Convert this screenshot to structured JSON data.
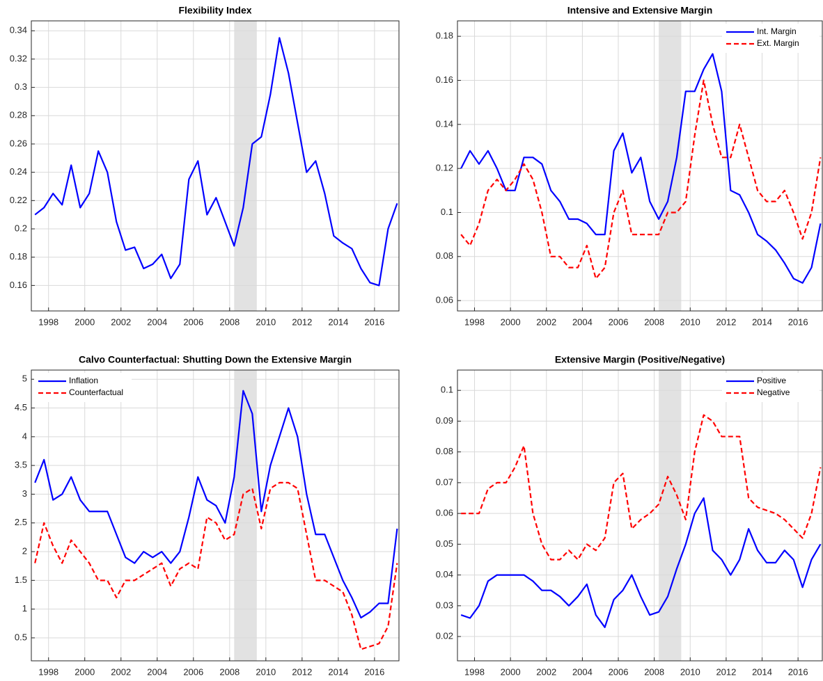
{
  "chart_data": [
    {
      "type": "line",
      "title": "Flexibility Index",
      "x": [
        1997.25,
        1997.75,
        1998.25,
        1998.75,
        1999.25,
        1999.75,
        2000.25,
        2000.75,
        2001.25,
        2001.75,
        2002.25,
        2002.75,
        2003.25,
        2003.75,
        2004.25,
        2004.75,
        2005.25,
        2005.75,
        2006.25,
        2006.75,
        2007.25,
        2007.75,
        2008.25,
        2008.75,
        2009.25,
        2009.75,
        2010.25,
        2010.75,
        2011.25,
        2011.75,
        2012.25,
        2012.75,
        2013.25,
        2013.75,
        2014.25,
        2014.75,
        2015.25,
        2015.75,
        2016.25,
        2016.75,
        2017.25
      ],
      "series": [
        {
          "color": "#0000ff",
          "linestyle": "solid",
          "values": [
            0.21,
            0.215,
            0.225,
            0.217,
            0.245,
            0.215,
            0.225,
            0.255,
            0.24,
            0.205,
            0.185,
            0.187,
            0.172,
            0.175,
            0.182,
            0.165,
            0.175,
            0.235,
            0.248,
            0.21,
            0.222,
            0.205,
            0.188,
            0.215,
            0.26,
            0.265,
            0.295,
            0.335,
            0.31,
            0.275,
            0.24,
            0.248,
            0.225,
            0.195,
            0.19,
            0.186,
            0.172,
            0.162,
            0.16,
            0.2,
            0.218
          ]
        }
      ],
      "xlim": [
        1997.05,
        2017.35
      ],
      "xticks": [
        1998,
        2000,
        2002,
        2004,
        2006,
        2008,
        2010,
        2012,
        2014,
        2016
      ],
      "ylim": [
        0.142,
        0.347
      ],
      "yticks": [
        0.16,
        0.18,
        0.2,
        0.22,
        0.24,
        0.26,
        0.28,
        0.3,
        0.32,
        0.34
      ],
      "shade": [
        2008.25,
        2009.5
      ],
      "grid": true
    },
    {
      "type": "line",
      "title": "Intensive and Extensive Margin",
      "x": [
        1997.25,
        1997.75,
        1998.25,
        1998.75,
        1999.25,
        1999.75,
        2000.25,
        2000.75,
        2001.25,
        2001.75,
        2002.25,
        2002.75,
        2003.25,
        2003.75,
        2004.25,
        2004.75,
        2005.25,
        2005.75,
        2006.25,
        2006.75,
        2007.25,
        2007.75,
        2008.25,
        2008.75,
        2009.25,
        2009.75,
        2010.25,
        2010.75,
        2011.25,
        2011.75,
        2012.25,
        2012.75,
        2013.25,
        2013.75,
        2014.25,
        2014.75,
        2015.25,
        2015.75,
        2016.25,
        2016.75,
        2017.25
      ],
      "series": [
        {
          "name": "Int. Margin",
          "color": "#0000ff",
          "linestyle": "solid",
          "values": [
            0.12,
            0.128,
            0.122,
            0.128,
            0.12,
            0.11,
            0.11,
            0.125,
            0.125,
            0.122,
            0.11,
            0.105,
            0.097,
            0.097,
            0.095,
            0.09,
            0.09,
            0.128,
            0.136,
            0.118,
            0.125,
            0.105,
            0.097,
            0.105,
            0.125,
            0.155,
            0.155,
            0.165,
            0.172,
            0.155,
            0.11,
            0.108,
            0.1,
            0.09,
            0.087,
            0.083,
            0.077,
            0.07,
            0.068,
            0.075,
            0.095
          ]
        },
        {
          "name": "Ext. Margin",
          "color": "#ff0000",
          "linestyle": "dashed",
          "values": [
            0.09,
            0.085,
            0.095,
            0.11,
            0.115,
            0.11,
            0.115,
            0.122,
            0.115,
            0.1,
            0.08,
            0.08,
            0.075,
            0.075,
            0.085,
            0.07,
            0.075,
            0.1,
            0.11,
            0.09,
            0.09,
            0.09,
            0.09,
            0.1,
            0.1,
            0.105,
            0.135,
            0.16,
            0.14,
            0.125,
            0.125,
            0.14,
            0.125,
            0.11,
            0.105,
            0.105,
            0.11,
            0.1,
            0.088,
            0.1,
            0.125
          ]
        }
      ],
      "xlim": [
        1997.05,
        2017.35
      ],
      "xticks": [
        1998,
        2000,
        2002,
        2004,
        2006,
        2008,
        2010,
        2012,
        2014,
        2016
      ],
      "ylim": [
        0.0553,
        0.187
      ],
      "yticks": [
        0.06,
        0.08,
        0.1,
        0.12,
        0.14,
        0.16,
        0.18
      ],
      "shade": [
        2008.25,
        2009.5
      ],
      "grid": true,
      "legend": "upper right"
    },
    {
      "type": "line",
      "title": "Calvo Counterfactual: Shutting Down the Extensive Margin",
      "x": [
        1997.25,
        1997.75,
        1998.25,
        1998.75,
        1999.25,
        1999.75,
        2000.25,
        2000.75,
        2001.25,
        2001.75,
        2002.25,
        2002.75,
        2003.25,
        2003.75,
        2004.25,
        2004.75,
        2005.25,
        2005.75,
        2006.25,
        2006.75,
        2007.25,
        2007.75,
        2008.25,
        2008.75,
        2009.25,
        2009.75,
        2010.25,
        2010.75,
        2011.25,
        2011.75,
        2012.25,
        2012.75,
        2013.25,
        2013.75,
        2014.25,
        2014.75,
        2015.25,
        2015.75,
        2016.25,
        2016.75,
        2017.25
      ],
      "series": [
        {
          "name": "Inflation",
          "color": "#0000ff",
          "linestyle": "solid",
          "values": [
            3.2,
            3.6,
            2.9,
            3.0,
            3.3,
            2.9,
            2.7,
            2.7,
            2.7,
            2.3,
            1.9,
            1.8,
            2.0,
            1.9,
            2.0,
            1.8,
            2.0,
            2.6,
            3.3,
            2.9,
            2.8,
            2.5,
            3.3,
            4.8,
            4.4,
            2.7,
            3.5,
            4.0,
            4.5,
            4.0,
            3.0,
            2.3,
            2.3,
            1.9,
            1.5,
            1.2,
            0.85,
            0.95,
            1.1,
            1.1,
            2.4
          ]
        },
        {
          "name": "Counterfactual",
          "color": "#ff0000",
          "linestyle": "dashed",
          "values": [
            1.8,
            2.5,
            2.1,
            1.8,
            2.2,
            2.0,
            1.8,
            1.5,
            1.5,
            1.2,
            1.5,
            1.5,
            1.6,
            1.7,
            1.8,
            1.4,
            1.7,
            1.8,
            1.7,
            2.6,
            2.5,
            2.2,
            2.3,
            3.0,
            3.1,
            2.4,
            3.1,
            3.2,
            3.2,
            3.1,
            2.3,
            1.5,
            1.5,
            1.4,
            1.3,
            0.9,
            0.3,
            0.35,
            0.4,
            0.7,
            1.8
          ]
        }
      ],
      "xlim": [
        1997.05,
        2017.35
      ],
      "xticks": [
        1998,
        2000,
        2002,
        2004,
        2006,
        2008,
        2010,
        2012,
        2014,
        2016
      ],
      "ylim": [
        0.1,
        5.16
      ],
      "yticks": [
        0.5,
        1,
        1.5,
        2,
        2.5,
        3,
        3.5,
        4,
        4.5,
        5
      ],
      "shade": [
        2008.25,
        2009.5
      ],
      "grid": true,
      "legend": "upper left"
    },
    {
      "type": "line",
      "title": "Extensive Margin (Positive/Negative)",
      "x": [
        1997.25,
        1997.75,
        1998.25,
        1998.75,
        1999.25,
        1999.75,
        2000.25,
        2000.75,
        2001.25,
        2001.75,
        2002.25,
        2002.75,
        2003.25,
        2003.75,
        2004.25,
        2004.75,
        2005.25,
        2005.75,
        2006.25,
        2006.75,
        2007.25,
        2007.75,
        2008.25,
        2008.75,
        2009.25,
        2009.75,
        2010.25,
        2010.75,
        2011.25,
        2011.75,
        2012.25,
        2012.75,
        2013.25,
        2013.75,
        2014.25,
        2014.75,
        2015.25,
        2015.75,
        2016.25,
        2016.75,
        2017.25
      ],
      "series": [
        {
          "name": "Positive",
          "color": "#0000ff",
          "linestyle": "solid",
          "values": [
            0.027,
            0.026,
            0.03,
            0.038,
            0.04,
            0.04,
            0.04,
            0.04,
            0.038,
            0.035,
            0.035,
            0.033,
            0.03,
            0.033,
            0.037,
            0.027,
            0.023,
            0.032,
            0.035,
            0.04,
            0.033,
            0.027,
            0.028,
            0.033,
            0.042,
            0.05,
            0.06,
            0.065,
            0.048,
            0.045,
            0.04,
            0.045,
            0.055,
            0.048,
            0.044,
            0.044,
            0.048,
            0.045,
            0.036,
            0.045,
            0.05
          ]
        },
        {
          "name": "Negative",
          "color": "#ff0000",
          "linestyle": "dashed",
          "values": [
            0.06,
            0.06,
            0.06,
            0.068,
            0.07,
            0.07,
            0.075,
            0.082,
            0.06,
            0.05,
            0.045,
            0.045,
            0.048,
            0.045,
            0.05,
            0.048,
            0.052,
            0.07,
            0.073,
            0.055,
            0.058,
            0.06,
            0.063,
            0.072,
            0.066,
            0.058,
            0.08,
            0.092,
            0.09,
            0.085,
            0.085,
            0.085,
            0.065,
            0.062,
            0.061,
            0.06,
            0.058,
            0.055,
            0.052,
            0.06,
            0.075
          ]
        }
      ],
      "xlim": [
        1997.05,
        2017.35
      ],
      "xticks": [
        1998,
        2000,
        2002,
        2004,
        2006,
        2008,
        2010,
        2012,
        2014,
        2016
      ],
      "ylim": [
        0.0121,
        0.1066
      ],
      "yticks": [
        0.02,
        0.03,
        0.04,
        0.05,
        0.06,
        0.07,
        0.08,
        0.09,
        0.1
      ],
      "shade": [
        2008.25,
        2009.5
      ],
      "grid": true,
      "legend": "upper right"
    }
  ]
}
